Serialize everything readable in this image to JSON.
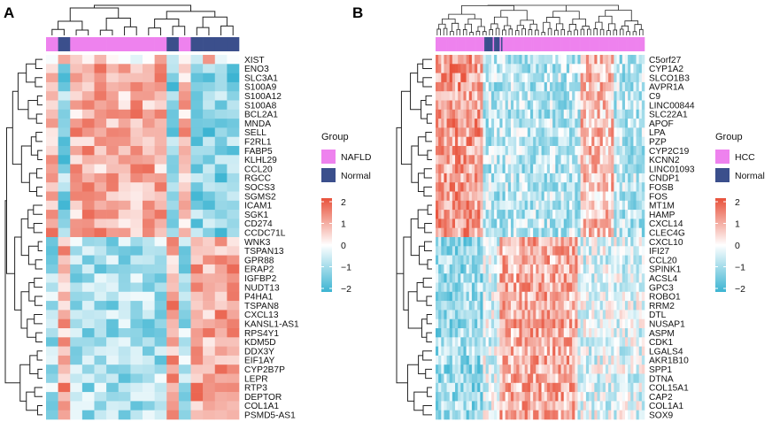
{
  "chart_data": [
    {
      "type": "heatmap",
      "panel": "A",
      "n_samples": 16,
      "sample_groups": [
        "NAFLD",
        "Normal",
        "NAFLD",
        "NAFLD",
        "NAFLD",
        "NAFLD",
        "NAFLD",
        "NAFLD",
        "NAFLD",
        "NAFLD",
        "Normal",
        "NAFLD",
        "Normal",
        "Normal",
        "Normal",
        "Normal"
      ],
      "genes": [
        "XIST",
        "ENO3",
        "SLC3A1",
        "S100A9",
        "S100A12",
        "S100A8",
        "BCL2A1",
        "MNDA",
        "SELL",
        "F2RL1",
        "FABP5",
        "KLHL29",
        "CCL20",
        "RGCC",
        "SOCS3",
        "SGMS2",
        "ICAM1",
        "SGK1",
        "CD274",
        "CCDC71L",
        "WNK3",
        "TSPAN13",
        "GPR88",
        "ERAP2",
        "IGFBP2",
        "NUDT13",
        "P4HA1",
        "TSPAN8",
        "CXCL13",
        "KANSL1-AS1",
        "RPS4Y1",
        "KDM5D",
        "DDX3Y",
        "EIF1AY",
        "CYP2B7P",
        "LEPR",
        "RTP3",
        "DEPTOR",
        "COL1A1",
        "PSMD5-AS1"
      ],
      "n_up_genes": 20,
      "legend": {
        "title": "Group",
        "entries": [
          {
            "label": "NAFLD",
            "color": "#EE82EE"
          },
          {
            "label": "Normal",
            "color": "#3B4F8C"
          }
        ]
      },
      "color_scale": {
        "min": -2,
        "max": 2,
        "ticks": [
          "2",
          "1",
          "0",
          "−1",
          "−2"
        ],
        "low": "#3CB4D2",
        "mid": "#FFFFFF",
        "high": "#E8513A"
      }
    },
    {
      "type": "heatmap",
      "panel": "B",
      "n_samples": 150,
      "normal_sample_range": [
        34,
        48
      ],
      "genes": [
        "C5orf27",
        "CYP1A2",
        "SLCO1B3",
        "AVPR1A",
        "C9",
        "LINC00844",
        "SLC22A1",
        "APOF",
        "LPA",
        "PZP",
        "CYP2C19",
        "KCNN2",
        "LINC01093",
        "CNDP1",
        "FOSB",
        "FOS",
        "MT1M",
        "HAMP",
        "CXCL14",
        "CLEC4G",
        "CXCL10",
        "IFI27",
        "CCL20",
        "SPINK1",
        "ACSL4",
        "GPC3",
        "ROBO1",
        "RRM2",
        "DTL",
        "NUSAP1",
        "ASPM",
        "CDK1",
        "LGALS4",
        "AKR1B10",
        "SPP1",
        "DTNA",
        "COL15A1",
        "CAP2",
        "COL1A1",
        "SOX9"
      ],
      "n_down_genes": 20,
      "legend": {
        "title": "Group",
        "entries": [
          {
            "label": "HCC",
            "color": "#EE82EE"
          },
          {
            "label": "Normal",
            "color": "#3B4F8C"
          }
        ]
      },
      "color_scale": {
        "min": -2,
        "max": 2,
        "ticks": [
          "2",
          "1",
          "0",
          "−1",
          "−2"
        ],
        "low": "#3CB4D2",
        "mid": "#FFFFFF",
        "high": "#E8513A"
      }
    }
  ],
  "labels": {
    "panel_a": "A",
    "panel_b": "B"
  }
}
